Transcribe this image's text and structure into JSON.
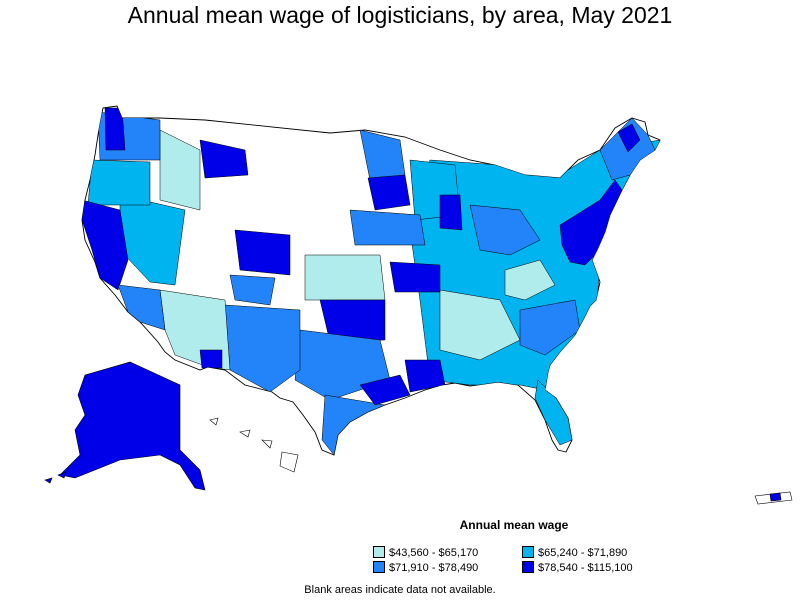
{
  "title": "Annual mean wage of logisticians, by area, May 2021",
  "legend": {
    "title": "Annual mean wage",
    "items": [
      {
        "label": "$43,560 - $65,170",
        "color": "#b0ecec"
      },
      {
        "label": "$65,240 - $71,890",
        "color": "#00b4f0"
      },
      {
        "label": "$71,910 - $78,490",
        "color": "#2284f8"
      },
      {
        "label": "$78,540 - $115,100",
        "color": "#0000e8"
      }
    ]
  },
  "footnote": "Blank areas indicate data not available."
}
